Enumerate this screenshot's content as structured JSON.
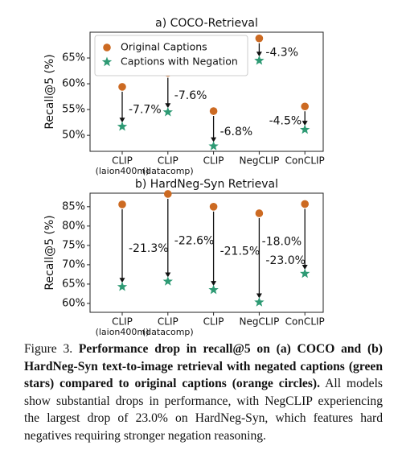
{
  "chart_data": [
    {
      "type": "dot",
      "title": "a) COCO-Retrieval",
      "ylabel": "Recall@5 (%)",
      "categories": [
        [
          "CLIP",
          "(laion400m)"
        ],
        [
          "CLIP",
          "(datacomp)"
        ],
        [
          "CLIP"
        ],
        [
          "NegCLIP"
        ],
        [
          "ConCLIP"
        ]
      ],
      "series": [
        {
          "name": "Original Captions",
          "color": "#cc6a22",
          "marker": "circle",
          "values": [
            59.4,
            62.1,
            54.7,
            68.8,
            55.6
          ]
        },
        {
          "name": "Captions with Negation",
          "color": "#2e9a74",
          "marker": "star",
          "values": [
            51.7,
            54.5,
            47.9,
            64.5,
            51.1
          ]
        }
      ],
      "annotations": [
        "-7.7%",
        "-7.6%",
        "-6.8%",
        "-4.3%",
        "-4.5%"
      ],
      "ylim": [
        46.9,
        70
      ],
      "yticks": [
        {
          "value": 50,
          "label": "50%"
        },
        {
          "value": 55,
          "label": "55%"
        },
        {
          "value": 60,
          "label": "60%"
        },
        {
          "value": 65,
          "label": "65%"
        }
      ],
      "legend": "upper left"
    },
    {
      "type": "dot",
      "title": "b) HardNeg-Syn Retrieval",
      "ylabel": "Recall@5 (%)",
      "categories": [
        [
          "CLIP",
          "(laion400m)"
        ],
        [
          "CLIP",
          "(datacomp)"
        ],
        [
          "CLIP"
        ],
        [
          "NegCLIP"
        ],
        [
          "ConCLIP"
        ]
      ],
      "series": [
        {
          "color": "#cc6a22",
          "marker": "circle",
          "values": [
            85.6,
            88.3,
            85.0,
            83.3,
            85.7
          ]
        },
        {
          "color": "#2e9a74",
          "marker": "star",
          "values": [
            64.3,
            65.7,
            63.5,
            60.3,
            67.7
          ]
        }
      ],
      "annotations": [
        "-21.3%",
        "-22.6%",
        "-21.5%",
        "-23.0%",
        "-18.0%"
      ],
      "ylim": [
        57.7,
        88.5
      ],
      "yticks": [
        {
          "value": 60,
          "label": "60%"
        },
        {
          "value": 65,
          "label": "65%"
        },
        {
          "value": 70,
          "label": "70%"
        },
        {
          "value": 75,
          "label": "75%"
        },
        {
          "value": 80,
          "label": "80%"
        },
        {
          "value": 85,
          "label": "85%"
        }
      ]
    }
  ],
  "caption": {
    "label": "Figure 3.",
    "bold": "Performance drop in recall@5 on (a) COCO and (b) HardNeg-Syn text-to-image retrieval with negated captions (green stars) compared to original captions (orange circles).",
    "text": "All models show substantial drops in performance, with NegCLIP experiencing the largest drop of 23.0% on HardNeg-Syn, which features hard negatives requiring stronger negation reasoning."
  }
}
